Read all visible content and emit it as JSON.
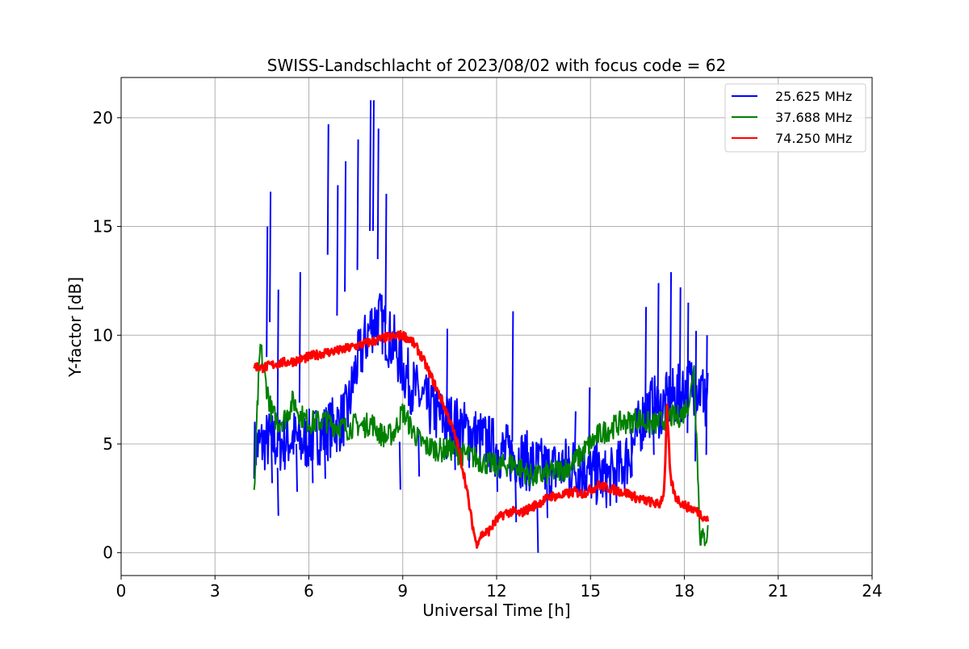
{
  "chart_data": {
    "type": "line",
    "title": "SWISS-Landschlacht of 2023/08/02 with focus code = 62",
    "xlabel": "Universal Time [h]",
    "ylabel": "Y-factor [dB]",
    "xlim": [
      0,
      24
    ],
    "ylim": [
      -1.05,
      21.85
    ],
    "xticks": [
      0,
      3,
      6,
      9,
      12,
      15,
      18,
      21,
      24
    ],
    "yticks": [
      0,
      5,
      10,
      15,
      20
    ],
    "grid": true,
    "legend_position": "top-right",
    "series": [
      {
        "name": "25.625 MHz",
        "color": "#0000ff",
        "x": [
          4.25,
          4.5,
          4.75,
          5.0,
          5.25,
          5.5,
          5.75,
          6.0,
          6.25,
          6.5,
          6.75,
          7.0,
          7.25,
          7.5,
          7.75,
          8.0,
          8.25,
          8.5,
          8.75,
          9.0,
          9.25,
          9.5,
          9.75,
          10.0,
          10.25,
          10.5,
          10.75,
          11.0,
          11.25,
          11.5,
          11.75,
          12.0,
          12.25,
          12.5,
          12.75,
          13.0,
          13.25,
          13.5,
          13.75,
          14.0,
          14.25,
          14.5,
          14.75,
          15.0,
          15.25,
          15.5,
          15.75,
          16.0,
          16.25,
          16.5,
          16.75,
          17.0,
          17.25,
          17.5,
          17.75,
          18.0,
          18.25,
          18.5,
          18.75
        ],
        "y": [
          4.8,
          5.0,
          5.2,
          5.0,
          5.1,
          5.3,
          5.0,
          5.2,
          5.4,
          5.5,
          5.8,
          6.0,
          6.5,
          8.5,
          9.5,
          10.5,
          10.8,
          10.0,
          9.5,
          8.5,
          7.8,
          7.2,
          6.8,
          6.5,
          6.2,
          6.0,
          5.8,
          5.6,
          5.4,
          5.2,
          5.0,
          4.8,
          4.6,
          4.5,
          4.4,
          4.2,
          4.0,
          3.9,
          3.8,
          3.9,
          4.0,
          4.0,
          3.8,
          3.6,
          3.5,
          3.4,
          3.5,
          4.0,
          4.5,
          5.5,
          6.5,
          6.8,
          6.6,
          7.0,
          7.2,
          7.5,
          7.8,
          7.5,
          7.2
        ],
        "spikes": [
          [
            4.65,
            15.0
          ],
          [
            4.75,
            16.6
          ],
          [
            5.0,
            12.1
          ],
          [
            5.7,
            12.9
          ],
          [
            6.6,
            19.7
          ],
          [
            6.9,
            16.9
          ],
          [
            7.15,
            18.0
          ],
          [
            7.55,
            19.0
          ],
          [
            7.95,
            20.8
          ],
          [
            8.05,
            20.8
          ],
          [
            8.2,
            19.5
          ],
          [
            8.45,
            16.5
          ],
          [
            10.4,
            10.3
          ],
          [
            12.5,
            11.1
          ],
          [
            14.2,
            5.0
          ],
          [
            14.5,
            6.5
          ],
          [
            14.95,
            7.6
          ],
          [
            16.75,
            11.3
          ],
          [
            17.15,
            12.4
          ],
          [
            17.55,
            12.9
          ],
          [
            17.85,
            12.2
          ],
          [
            18.1,
            11.5
          ],
          [
            18.35,
            10.2
          ],
          [
            18.7,
            10.0
          ]
        ],
        "dips": [
          [
            4.8,
            3.2
          ],
          [
            5.0,
            1.7
          ],
          [
            5.6,
            2.8
          ],
          [
            6.1,
            3.2
          ],
          [
            6.5,
            3.4
          ],
          [
            8.9,
            2.9
          ],
          [
            9.5,
            3.5
          ],
          [
            10.65,
            3.8
          ],
          [
            11.1,
            3.9
          ],
          [
            12.0,
            2.8
          ],
          [
            12.6,
            1.4
          ],
          [
            13.3,
            0.0
          ],
          [
            13.6,
            1.6
          ],
          [
            14.3,
            2.7
          ],
          [
            14.8,
            2.6
          ],
          [
            15.2,
            3.0
          ],
          [
            16.3,
            3.5
          ],
          [
            17.0,
            4.5
          ],
          [
            18.65,
            5.8
          ]
        ]
      },
      {
        "name": "37.688 MHz",
        "color": "#008000",
        "x": [
          4.25,
          4.35,
          4.45,
          4.6,
          4.8,
          5.0,
          5.25,
          5.5,
          5.75,
          6.0,
          6.25,
          6.5,
          6.75,
          7.0,
          7.25,
          7.5,
          7.75,
          8.0,
          8.25,
          8.5,
          8.75,
          9.0,
          9.25,
          9.5,
          9.75,
          10.0,
          10.25,
          10.5,
          10.75,
          11.0,
          11.25,
          11.5,
          11.75,
          12.0,
          12.25,
          12.5,
          12.75,
          13.0,
          13.25,
          13.5,
          13.75,
          14.0,
          14.25,
          14.5,
          14.75,
          15.0,
          15.25,
          15.5,
          15.75,
          16.0,
          16.25,
          16.5,
          16.75,
          17.0,
          17.25,
          17.5,
          17.75,
          18.0,
          18.2,
          18.3,
          18.4,
          18.5,
          18.6,
          18.75
        ],
        "y": [
          2.5,
          6.5,
          9.5,
          8.0,
          6.5,
          6.0,
          6.2,
          7.0,
          6.3,
          6.0,
          6.0,
          6.1,
          5.9,
          5.8,
          5.7,
          5.9,
          5.8,
          6.0,
          5.5,
          5.3,
          5.6,
          6.5,
          5.8,
          5.2,
          4.9,
          4.8,
          4.7,
          4.8,
          4.6,
          4.5,
          4.4,
          4.2,
          4.1,
          4.0,
          4.0,
          4.1,
          3.9,
          3.6,
          3.5,
          3.6,
          3.7,
          3.8,
          3.9,
          4.2,
          4.6,
          5.0,
          5.4,
          5.6,
          5.8,
          6.0,
          6.0,
          6.2,
          6.0,
          5.9,
          6.0,
          6.3,
          6.2,
          6.5,
          7.2,
          8.8,
          5.0,
          0.8,
          0.6,
          0.9
        ]
      },
      {
        "name": "74.250 MHz",
        "color": "#ff0000",
        "x": [
          4.25,
          4.5,
          5.0,
          5.5,
          6.0,
          6.5,
          7.0,
          7.5,
          8.0,
          8.5,
          9.0,
          9.25,
          9.5,
          9.75,
          10.0,
          10.25,
          10.5,
          10.75,
          11.0,
          11.2,
          11.35,
          11.5,
          11.75,
          12.0,
          12.25,
          12.5,
          12.75,
          13.0,
          13.25,
          13.5,
          13.75,
          14.0,
          14.25,
          14.5,
          14.75,
          15.0,
          15.25,
          15.5,
          15.75,
          16.0,
          16.25,
          16.5,
          16.75,
          17.0,
          17.2,
          17.35,
          17.45,
          17.55,
          17.7,
          17.9,
          18.1,
          18.3,
          18.5,
          18.75
        ],
        "y": [
          8.6,
          8.5,
          8.7,
          8.8,
          9.0,
          9.2,
          9.3,
          9.5,
          9.7,
          9.9,
          10.0,
          9.8,
          9.3,
          8.6,
          7.8,
          7.0,
          6.1,
          5.0,
          3.3,
          1.5,
          0.4,
          0.8,
          1.0,
          1.5,
          1.8,
          1.9,
          1.8,
          2.0,
          2.2,
          2.4,
          2.6,
          2.6,
          2.7,
          2.8,
          2.7,
          2.9,
          3.1,
          3.0,
          2.9,
          2.8,
          2.7,
          2.5,
          2.4,
          2.3,
          2.2,
          2.8,
          6.6,
          3.5,
          2.6,
          2.3,
          2.1,
          2.0,
          1.8,
          1.5
        ]
      }
    ]
  }
}
